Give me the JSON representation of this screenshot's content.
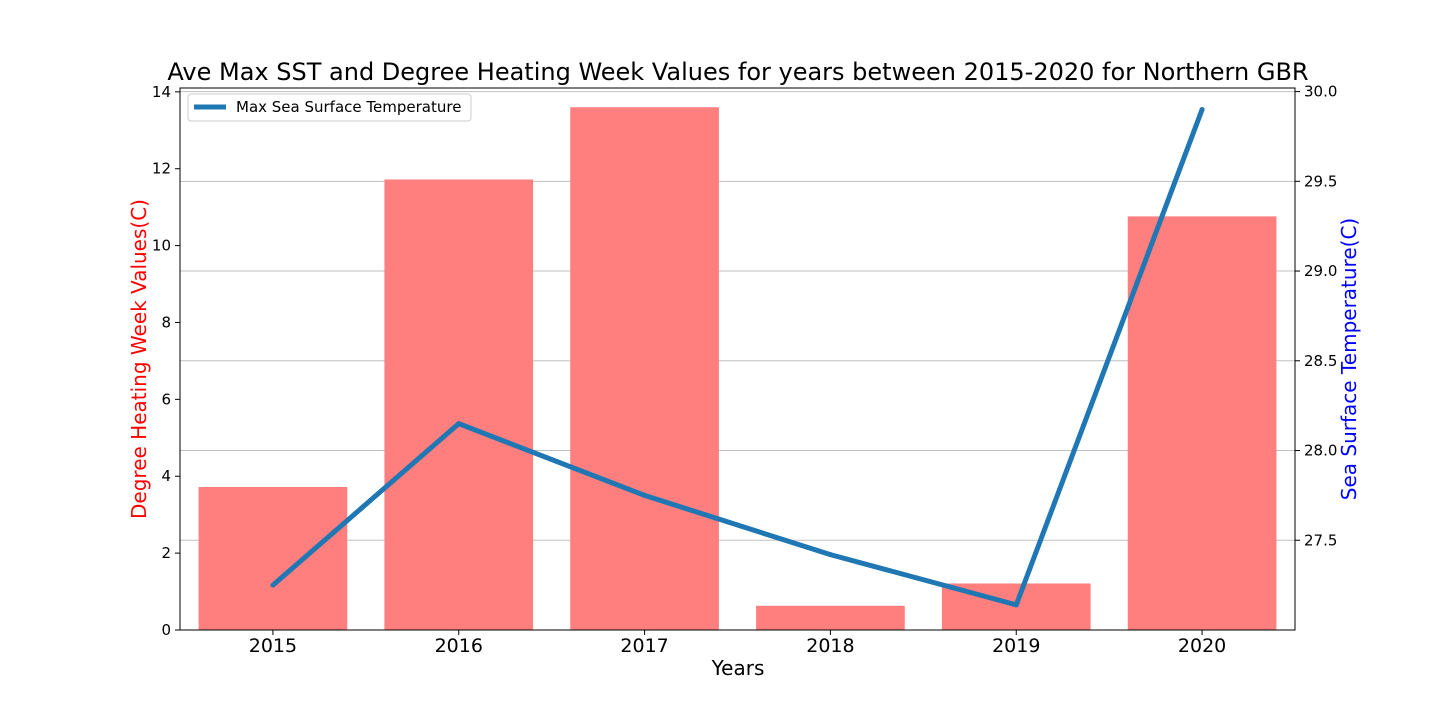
{
  "chart_data": {
    "type": "bar+line",
    "title": "Ave Max SST and Degree Heating Week Values for years between 2015-2020 for Northern GBR",
    "xlabel": "Years",
    "categories": [
      "2015",
      "2016",
      "2017",
      "2018",
      "2019",
      "2020"
    ],
    "bars": {
      "axis": "left",
      "ylabel": "Degree Heating Week Values(C)",
      "ylabel_color": "#ff0000",
      "color": "#ff7f7f",
      "values": [
        3.72,
        11.72,
        13.6,
        0.63,
        1.21,
        10.76
      ],
      "ylim": [
        0,
        14.1
      ],
      "ticks": [
        "0",
        "2",
        "4",
        "6",
        "8",
        "10",
        "12",
        "14"
      ]
    },
    "line": {
      "axis": "right",
      "name": "Max Sea Surface Temperature",
      "ylabel": "Sea Surface Temperature(C)",
      "ylabel_color": "#0000ff",
      "color": "#1f77b4",
      "values": [
        27.25,
        28.15,
        27.75,
        27.42,
        27.14,
        29.9
      ],
      "ylim": [
        27.0,
        30.02
      ],
      "ticks": [
        "27.5",
        "28.0",
        "28.5",
        "29.0",
        "29.5",
        "30.0"
      ]
    },
    "grid": "horizontal (right axis)",
    "legend": "top-left"
  }
}
